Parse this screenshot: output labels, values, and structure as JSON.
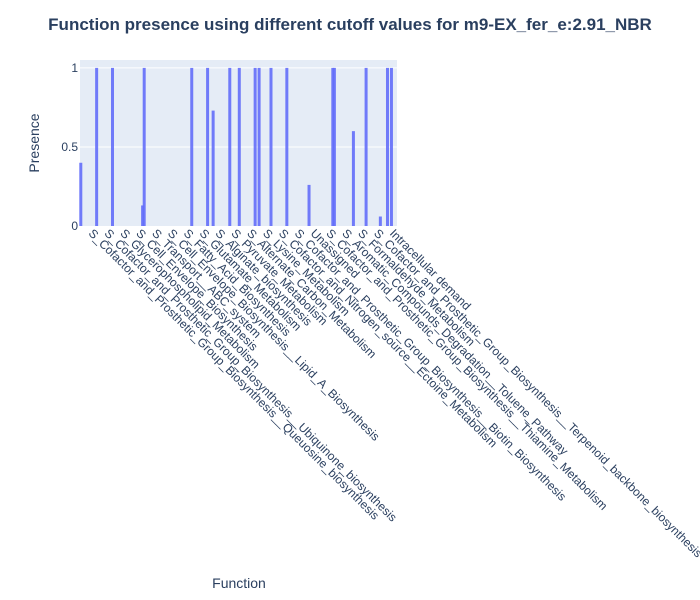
{
  "chart_data": {
    "type": "bar",
    "title": "Function presence using different cutoff values for m9-EX_fer_e:2.91_NBR",
    "xlabel": "Function",
    "ylabel": "Presence",
    "ylim": [
      0,
      1.05
    ],
    "yticks": [
      0,
      0.5,
      1
    ],
    "ytick_labels": [
      "0",
      "0.5",
      "1"
    ],
    "grid": true,
    "bar_color": "#636efa",
    "plot_bg": "#e5ecf6",
    "categories": [
      "S_Cofactor_and_Prosthetic_Group_Biosynthesis__Queuosine_biosynthesis",
      "S_Cofactor_and_Prosthetic_Group_Biosynthesis__Ubiquinone_biosynthesis",
      "S_Glycerophospholipid_Metabolism",
      "S_Cell_Envelope_Biosynthesis",
      "S_Transport__ABC_system",
      "S_Cell_Envelope_Biosynthesis__Lipid_A_Biosynthesis",
      "S_Fatty_Acid_Biosynthesis",
      "S_Glutamate_Metabolism",
      "S_Alginate_biosynthesis",
      "S_Pyruvate_Metabolism",
      "S_Alternate_Carbon_Metabolism",
      "S_Lysine_Metabolism",
      "S_Cofactor_and_Nitrogen_source__Ectoine_Metabolism",
      "S_Cofactor_and_Prosthetic_Group_Biosynthesis__Biotin_Biosynthesis",
      "Unassigned",
      "S_Cofactor_and_Prosthetic_Group_Biosynthesis__Thiamine_Metabolism",
      "S_Aromatic_Compounds_Degradation__Toluene_Pathway",
      "S_Formaldehyde_Metabolism",
      "S_Cofactor_and_Prosthetic_Group_Biosynthesis__Terpenoid_backbone_biosynthesis",
      "Intracellular demand"
    ],
    "series": [
      {
        "bars": [
          {
            "category": "S_Cofactor_and_Prosthetic_Group_Biosynthesis__Queuosine_biosynthesis",
            "value": 0.4,
            "offset": -0.45
          },
          {
            "category": "S_Cofactor_and_Prosthetic_Group_Biosynthesis__Ubiquinone_biosynthesis",
            "value": 1,
            "offset": -0.45
          },
          {
            "category": "S_Glycerophospholipid_Metabolism",
            "value": 1,
            "offset": -0.45
          },
          {
            "category": "S_Cell_Envelope_Biosynthesis",
            "value": 0.13,
            "offset": 0.45
          },
          {
            "category": "S_Transport__ABC_system",
            "value": 1,
            "offset": -0.45
          },
          {
            "category": "S_Glutamate_Metabolism",
            "value": 1,
            "offset": -0.45
          },
          {
            "category": "S_Alginate_biosynthesis",
            "value": 1,
            "offset": -0.45
          },
          {
            "category": "S_Alginate_biosynthesis",
            "value": 0.73,
            "offset": -0.1
          },
          {
            "category": "S_Pyruvate_Metabolism",
            "value": 1,
            "offset": -0.05
          },
          {
            "category": "S_Alternate_Carbon_Metabolism",
            "value": 1,
            "offset": -0.45
          },
          {
            "category": "S_Lysine_Metabolism",
            "value": 1,
            "offset": -0.45
          },
          {
            "category": "S_Lysine_Metabolism",
            "value": 1,
            "offset": -0.2
          },
          {
            "category": "S_Cofactor_and_Nitrogen_source__Ectoine_Metabolism",
            "value": 1,
            "offset": -0.45
          },
          {
            "category": "S_Cofactor_and_Prosthetic_Group_Biosynthesis__Biotin_Biosynthesis",
            "value": 1,
            "offset": -0.45
          },
          {
            "category": "S_Cofactor_and_Prosthetic_Group_Biosynthesis__Thiamine_Metabolism",
            "value": 1,
            "offset": 0.45
          },
          {
            "category": "Unassigned",
            "value": 0.26,
            "offset": -0.05
          },
          {
            "category": "S_Aromatic_Compounds_Degradation__Toluene_Pathway",
            "value": 1,
            "offset": -0.45
          },
          {
            "category": "S_Formaldehyde_Metabolism",
            "value": 0.6,
            "offset": -0.25
          },
          {
            "category": "S_Cofactor_and_Prosthetic_Group_Biosynthesis__Terpenoid_backbone_biosynthesis",
            "value": 1,
            "offset": -0.45
          },
          {
            "category": "S_Cofactor_and_Prosthetic_Group_Biosynthesis__Terpenoid_backbone_biosynthesis",
            "value": 0.06,
            "offset": 0.45
          },
          {
            "category": "Intracellular demand",
            "value": 1,
            "offset": -0.1
          },
          {
            "category": "Intracellular demand",
            "value": 1,
            "offset": 0.15
          }
        ]
      }
    ]
  }
}
